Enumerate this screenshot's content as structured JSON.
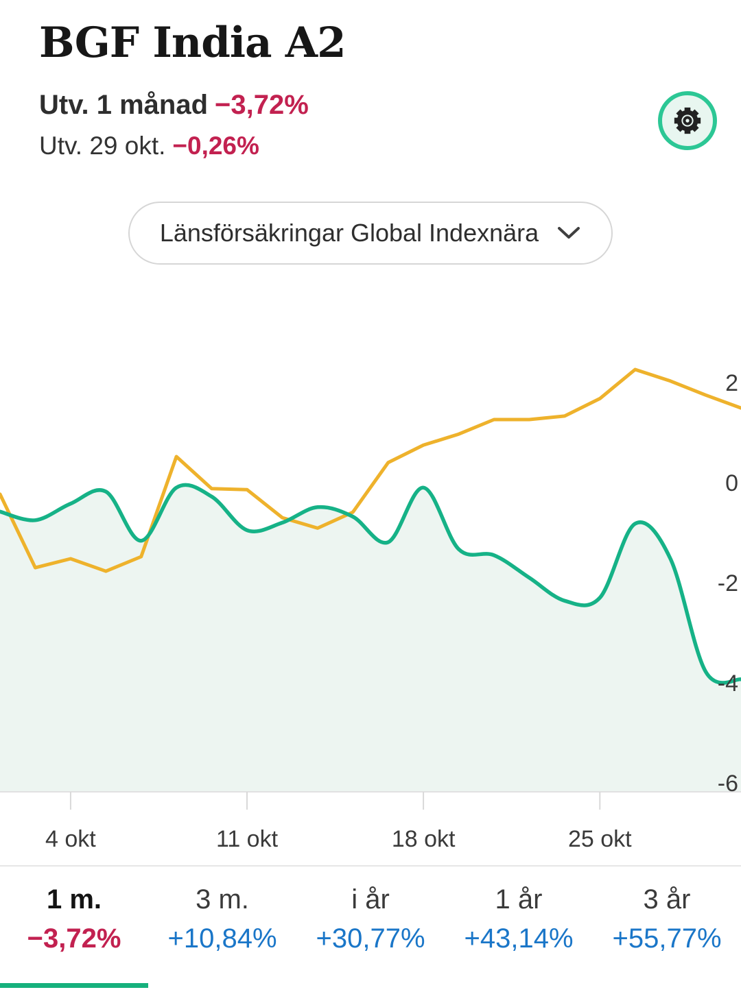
{
  "header": {
    "title": "BGF India A2",
    "period_label": "Utv. 1 månad",
    "period_value": "−3,72%",
    "day_label": "Utv. 29 okt.",
    "day_value": "−0,26%"
  },
  "comparison_dropdown": {
    "selected": "Länsförsäkringar Global Indexnära",
    "chevron_icon": "chevron-down-icon",
    "settings_icon": "gear-icon"
  },
  "chart_data": {
    "type": "line",
    "x_description": "consecutive trading days, ca 2 okt – 30 okt",
    "x_tick_labels": [
      "4 okt",
      "11 okt",
      "18 okt",
      "25 okt"
    ],
    "x_tick_indices": [
      2,
      7,
      12,
      17
    ],
    "y_ticks": [
      2,
      0,
      -2,
      -4,
      -6
    ],
    "y_tick_labels": [
      "2",
      "0",
      "-2",
      "-4",
      "-6"
    ],
    "ylabel": "%",
    "ylim": [
      -6.2,
      3.8
    ],
    "grid": false,
    "legend_position": "none",
    "series": [
      {
        "name": "BGF India A2",
        "color": "#16b287",
        "area_fill": "#edf5f1",
        "smooth": true,
        "values": [
          -0.58,
          -0.75,
          -0.42,
          -0.18,
          -1.16,
          -0.1,
          -0.28,
          -0.95,
          -0.8,
          -0.49,
          -0.68,
          -1.19,
          -0.1,
          -1.33,
          -1.45,
          -1.9,
          -2.36,
          -2.3,
          -0.82,
          -1.52,
          -3.78,
          -3.93
        ]
      },
      {
        "name": "Länsförsäkringar Global Indexnära",
        "color": "#eeb22c",
        "area_fill": null,
        "smooth": false,
        "values": [
          -0.23,
          -1.7,
          -1.52,
          -1.77,
          -1.48,
          0.52,
          -0.12,
          -0.14,
          -0.7,
          -0.91,
          -0.59,
          0.4,
          0.75,
          0.97,
          1.26,
          1.26,
          1.33,
          1.68,
          2.26,
          2.03,
          1.75,
          1.49
        ]
      }
    ]
  },
  "periods": {
    "tabs": [
      {
        "id": "1m",
        "label": "1 m.",
        "value": "−3,72%",
        "direction": "negative",
        "selected": true
      },
      {
        "id": "3m",
        "label": "3 m.",
        "value": "+10,84%",
        "direction": "positive",
        "selected": false
      },
      {
        "id": "iar",
        "label": "i år",
        "value": "+30,77%",
        "direction": "positive",
        "selected": false
      },
      {
        "id": "1ar",
        "label": "1 år",
        "value": "+43,14%",
        "direction": "positive",
        "selected": false
      },
      {
        "id": "3ar",
        "label": "3 år",
        "value": "+55,77%",
        "direction": "positive",
        "selected": false
      }
    ]
  },
  "colors": {
    "negative": "#c22150",
    "positive": "#1a76c8",
    "indicator": "#16b07c",
    "accent_green": "#2cc795"
  }
}
